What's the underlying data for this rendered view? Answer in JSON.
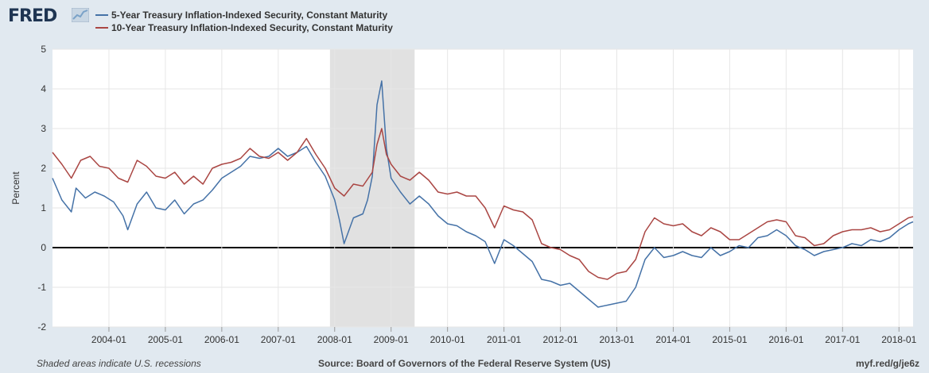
{
  "brand": {
    "logo_text": "FRED",
    "logo_icon": "chart-trend-icon"
  },
  "chart_data": {
    "type": "line",
    "title": "",
    "xlabel": "",
    "ylabel": "Percent",
    "ylim": [
      -2,
      5
    ],
    "yticks": [
      "5",
      "4",
      "3",
      "2",
      "1",
      "0",
      "-1",
      "-2"
    ],
    "xticks": [
      "2004-01",
      "2005-01",
      "2006-01",
      "2007-01",
      "2008-01",
      "2009-01",
      "2010-01",
      "2011-01",
      "2012-01",
      "2013-01",
      "2014-01",
      "2015-01",
      "2016-01",
      "2017-01",
      "2018-01"
    ],
    "xlim": [
      "2003-01",
      "2018-04"
    ],
    "grid": true,
    "legend": "top-left",
    "recessions": [
      {
        "start": "2007-12",
        "end": "2009-06"
      }
    ],
    "zero_line": true,
    "series": [
      {
        "name": "5-Year Treasury Inflation-Indexed Security, Constant Maturity",
        "color": "#4572a7",
        "points": [
          [
            "2003-01",
            1.75
          ],
          [
            "2003-03",
            1.2
          ],
          [
            "2003-05",
            0.9
          ],
          [
            "2003-06",
            1.5
          ],
          [
            "2003-08",
            1.25
          ],
          [
            "2003-10",
            1.4
          ],
          [
            "2003-12",
            1.3
          ],
          [
            "2004-02",
            1.15
          ],
          [
            "2004-04",
            0.8
          ],
          [
            "2004-05",
            0.45
          ],
          [
            "2004-07",
            1.1
          ],
          [
            "2004-09",
            1.4
          ],
          [
            "2004-11",
            1.0
          ],
          [
            "2005-01",
            0.95
          ],
          [
            "2005-03",
            1.2
          ],
          [
            "2005-05",
            0.85
          ],
          [
            "2005-07",
            1.1
          ],
          [
            "2005-09",
            1.2
          ],
          [
            "2005-11",
            1.45
          ],
          [
            "2006-01",
            1.75
          ],
          [
            "2006-03",
            1.9
          ],
          [
            "2006-05",
            2.05
          ],
          [
            "2006-07",
            2.3
          ],
          [
            "2006-09",
            2.25
          ],
          [
            "2006-11",
            2.3
          ],
          [
            "2007-01",
            2.5
          ],
          [
            "2007-03",
            2.3
          ],
          [
            "2007-05",
            2.4
          ],
          [
            "2007-07",
            2.55
          ],
          [
            "2007-09",
            2.15
          ],
          [
            "2007-11",
            1.8
          ],
          [
            "2008-01",
            1.2
          ],
          [
            "2008-02",
            0.7
          ],
          [
            "2008-03",
            0.1
          ],
          [
            "2008-05",
            0.75
          ],
          [
            "2008-07",
            0.85
          ],
          [
            "2008-08",
            1.2
          ],
          [
            "2008-09",
            1.8
          ],
          [
            "2008-10",
            3.6
          ],
          [
            "2008-11",
            4.2
          ],
          [
            "2008-12",
            2.5
          ],
          [
            "2009-01",
            1.75
          ],
          [
            "2009-03",
            1.4
          ],
          [
            "2009-05",
            1.1
          ],
          [
            "2009-07",
            1.3
          ],
          [
            "2009-09",
            1.1
          ],
          [
            "2009-11",
            0.8
          ],
          [
            "2010-01",
            0.6
          ],
          [
            "2010-03",
            0.55
          ],
          [
            "2010-05",
            0.4
          ],
          [
            "2010-07",
            0.3
          ],
          [
            "2010-09",
            0.15
          ],
          [
            "2010-11",
            -0.4
          ],
          [
            "2011-01",
            0.2
          ],
          [
            "2011-03",
            0.05
          ],
          [
            "2011-05",
            -0.15
          ],
          [
            "2011-07",
            -0.35
          ],
          [
            "2011-09",
            -0.8
          ],
          [
            "2011-11",
            -0.85
          ],
          [
            "2012-01",
            -0.95
          ],
          [
            "2012-03",
            -0.9
          ],
          [
            "2012-05",
            -1.1
          ],
          [
            "2012-07",
            -1.3
          ],
          [
            "2012-09",
            -1.5
          ],
          [
            "2012-11",
            -1.45
          ],
          [
            "2013-01",
            -1.4
          ],
          [
            "2013-03",
            -1.35
          ],
          [
            "2013-05",
            -1.0
          ],
          [
            "2013-07",
            -0.3
          ],
          [
            "2013-09",
            0.0
          ],
          [
            "2013-11",
            -0.25
          ],
          [
            "2014-01",
            -0.2
          ],
          [
            "2014-03",
            -0.1
          ],
          [
            "2014-05",
            -0.2
          ],
          [
            "2014-07",
            -0.25
          ],
          [
            "2014-09",
            0.0
          ],
          [
            "2014-11",
            -0.2
          ],
          [
            "2015-01",
            -0.1
          ],
          [
            "2015-03",
            0.05
          ],
          [
            "2015-05",
            0.0
          ],
          [
            "2015-07",
            0.25
          ],
          [
            "2015-09",
            0.3
          ],
          [
            "2015-11",
            0.45
          ],
          [
            "2016-01",
            0.3
          ],
          [
            "2016-03",
            0.05
          ],
          [
            "2016-05",
            -0.05
          ],
          [
            "2016-07",
            -0.2
          ],
          [
            "2016-09",
            -0.1
          ],
          [
            "2016-11",
            -0.05
          ],
          [
            "2017-01",
            0.0
          ],
          [
            "2017-03",
            0.1
          ],
          [
            "2017-05",
            0.05
          ],
          [
            "2017-07",
            0.2
          ],
          [
            "2017-09",
            0.15
          ],
          [
            "2017-11",
            0.25
          ],
          [
            "2018-01",
            0.45
          ],
          [
            "2018-03",
            0.6
          ],
          [
            "2018-04",
            0.65
          ]
        ]
      },
      {
        "name": "10-Year Treasury Inflation-Indexed Security, Constant Maturity",
        "color": "#aa4643",
        "points": [
          [
            "2003-01",
            2.4
          ],
          [
            "2003-03",
            2.1
          ],
          [
            "2003-05",
            1.75
          ],
          [
            "2003-07",
            2.2
          ],
          [
            "2003-09",
            2.3
          ],
          [
            "2003-11",
            2.05
          ],
          [
            "2004-01",
            2.0
          ],
          [
            "2004-03",
            1.75
          ],
          [
            "2004-05",
            1.65
          ],
          [
            "2004-07",
            2.2
          ],
          [
            "2004-09",
            2.05
          ],
          [
            "2004-11",
            1.8
          ],
          [
            "2005-01",
            1.75
          ],
          [
            "2005-03",
            1.9
          ],
          [
            "2005-05",
            1.6
          ],
          [
            "2005-07",
            1.8
          ],
          [
            "2005-09",
            1.6
          ],
          [
            "2005-11",
            2.0
          ],
          [
            "2006-01",
            2.1
          ],
          [
            "2006-03",
            2.15
          ],
          [
            "2006-05",
            2.25
          ],
          [
            "2006-07",
            2.5
          ],
          [
            "2006-09",
            2.3
          ],
          [
            "2006-11",
            2.25
          ],
          [
            "2007-01",
            2.4
          ],
          [
            "2007-03",
            2.2
          ],
          [
            "2007-05",
            2.4
          ],
          [
            "2007-07",
            2.75
          ],
          [
            "2007-09",
            2.35
          ],
          [
            "2007-11",
            2.0
          ],
          [
            "2008-01",
            1.5
          ],
          [
            "2008-03",
            1.3
          ],
          [
            "2008-05",
            1.6
          ],
          [
            "2008-07",
            1.55
          ],
          [
            "2008-09",
            1.9
          ],
          [
            "2008-10",
            2.6
          ],
          [
            "2008-11",
            3.0
          ],
          [
            "2008-12",
            2.35
          ],
          [
            "2009-01",
            2.1
          ],
          [
            "2009-03",
            1.8
          ],
          [
            "2009-05",
            1.7
          ],
          [
            "2009-07",
            1.9
          ],
          [
            "2009-09",
            1.7
          ],
          [
            "2009-11",
            1.4
          ],
          [
            "2010-01",
            1.35
          ],
          [
            "2010-03",
            1.4
          ],
          [
            "2010-05",
            1.3
          ],
          [
            "2010-07",
            1.3
          ],
          [
            "2010-09",
            1.0
          ],
          [
            "2010-11",
            0.5
          ],
          [
            "2011-01",
            1.05
          ],
          [
            "2011-03",
            0.95
          ],
          [
            "2011-05",
            0.9
          ],
          [
            "2011-07",
            0.7
          ],
          [
            "2011-09",
            0.1
          ],
          [
            "2011-11",
            0.0
          ],
          [
            "2012-01",
            -0.05
          ],
          [
            "2012-03",
            -0.2
          ],
          [
            "2012-05",
            -0.3
          ],
          [
            "2012-07",
            -0.6
          ],
          [
            "2012-09",
            -0.75
          ],
          [
            "2012-11",
            -0.8
          ],
          [
            "2013-01",
            -0.65
          ],
          [
            "2013-03",
            -0.6
          ],
          [
            "2013-05",
            -0.3
          ],
          [
            "2013-07",
            0.4
          ],
          [
            "2013-09",
            0.75
          ],
          [
            "2013-11",
            0.6
          ],
          [
            "2014-01",
            0.55
          ],
          [
            "2014-03",
            0.6
          ],
          [
            "2014-05",
            0.4
          ],
          [
            "2014-07",
            0.3
          ],
          [
            "2014-09",
            0.5
          ],
          [
            "2014-11",
            0.4
          ],
          [
            "2015-01",
            0.2
          ],
          [
            "2015-03",
            0.2
          ],
          [
            "2015-05",
            0.35
          ],
          [
            "2015-07",
            0.5
          ],
          [
            "2015-09",
            0.65
          ],
          [
            "2015-11",
            0.7
          ],
          [
            "2016-01",
            0.65
          ],
          [
            "2016-03",
            0.3
          ],
          [
            "2016-05",
            0.25
          ],
          [
            "2016-07",
            0.05
          ],
          [
            "2016-09",
            0.1
          ],
          [
            "2016-11",
            0.3
          ],
          [
            "2017-01",
            0.4
          ],
          [
            "2017-03",
            0.45
          ],
          [
            "2017-05",
            0.45
          ],
          [
            "2017-07",
            0.5
          ],
          [
            "2017-09",
            0.4
          ],
          [
            "2017-11",
            0.45
          ],
          [
            "2018-01",
            0.6
          ],
          [
            "2018-03",
            0.75
          ],
          [
            "2018-04",
            0.78
          ]
        ]
      }
    ]
  },
  "footer": {
    "left": "Shaded areas indicate U.S. recessions",
    "center": "Source: Board of Governors of the Federal Reserve System (US)",
    "right": "myf.red/g/je6z"
  }
}
